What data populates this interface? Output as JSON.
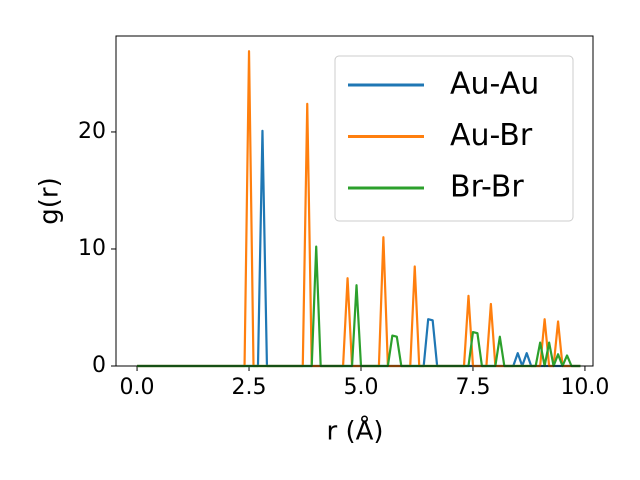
{
  "chart_data": {
    "type": "line",
    "xlabel": "r (Å)",
    "ylabel": "g(r)",
    "x": [
      0,
      0.1,
      0.2,
      0.3,
      0.4,
      0.5,
      0.6,
      0.7,
      0.8,
      0.9,
      1,
      1.1,
      1.2,
      1.3,
      1.4,
      1.5,
      1.6,
      1.7,
      1.8,
      1.9,
      2,
      2.1,
      2.2,
      2.3,
      2.4,
      2.5,
      2.6,
      2.7,
      2.8,
      2.9,
      3,
      3.1,
      3.2,
      3.3,
      3.4,
      3.5,
      3.6,
      3.7,
      3.8,
      3.9,
      4,
      4.1,
      4.2,
      4.3,
      4.4,
      4.5,
      4.6,
      4.7,
      4.8,
      4.9,
      5,
      5.1,
      5.2,
      5.3,
      5.4,
      5.5,
      5.6,
      5.7,
      5.8,
      5.9,
      6,
      6.1,
      6.2,
      6.3,
      6.4,
      6.5,
      6.6,
      6.7,
      6.8,
      6.9,
      7,
      7.1,
      7.2,
      7.3,
      7.4,
      7.5,
      7.6,
      7.7,
      7.8,
      7.9,
      8,
      8.1,
      8.2,
      8.3,
      8.4,
      8.5,
      8.6,
      8.7,
      8.8,
      8.9,
      9,
      9.1,
      9.2,
      9.3,
      9.4,
      9.5,
      9.6,
      9.7,
      9.8,
      9.9
    ],
    "series": [
      {
        "name": "Au-Au",
        "color": "#1f77b4",
        "values": [
          0,
          0,
          0,
          0,
          0,
          0,
          0,
          0,
          0,
          0,
          0,
          0,
          0,
          0,
          0,
          0,
          0,
          0,
          0,
          0,
          0,
          0,
          0,
          0,
          0,
          0,
          0,
          0,
          20.1,
          0,
          0,
          0,
          0,
          0,
          0,
          0,
          0,
          0,
          0,
          0,
          0,
          0,
          0,
          0,
          0,
          0,
          0,
          0,
          0,
          0,
          0,
          0,
          0,
          0,
          0,
          0,
          0,
          0,
          0,
          0,
          0,
          0,
          0,
          0,
          0,
          4.0,
          3.9,
          0,
          0,
          0,
          0,
          0,
          0,
          0,
          0,
          0,
          0,
          0,
          0,
          0,
          0,
          0,
          0,
          0,
          0,
          1.1,
          0,
          1.1,
          0,
          0,
          0,
          0,
          0,
          0,
          0,
          0,
          0,
          0,
          0,
          0
        ]
      },
      {
        "name": "Au-Br",
        "color": "#ff7f0e",
        "values": [
          0,
          0,
          0,
          0,
          0,
          0,
          0,
          0,
          0,
          0,
          0,
          0,
          0,
          0,
          0,
          0,
          0,
          0,
          0,
          0,
          0,
          0,
          0,
          0,
          0,
          26.9,
          0,
          0,
          0,
          0,
          0,
          0,
          0,
          0,
          0,
          0,
          0,
          0,
          22.4,
          0,
          0,
          0,
          0,
          0,
          0,
          0,
          0,
          7.5,
          0,
          0,
          0,
          0,
          0,
          0,
          0,
          11.0,
          0,
          0,
          0,
          0,
          0,
          0,
          8.5,
          0,
          0,
          0,
          0,
          0,
          0,
          0,
          0,
          0,
          0,
          0,
          6.0,
          0,
          0,
          0,
          0,
          5.3,
          0,
          0,
          0,
          0,
          0,
          0,
          0,
          0,
          0,
          0,
          0,
          4.0,
          0,
          0,
          3.8,
          0,
          0,
          0,
          0,
          0
        ]
      },
      {
        "name": "Br-Br",
        "color": "#2ca02c",
        "values": [
          0,
          0,
          0,
          0,
          0,
          0,
          0,
          0,
          0,
          0,
          0,
          0,
          0,
          0,
          0,
          0,
          0,
          0,
          0,
          0,
          0,
          0,
          0,
          0,
          0,
          0,
          0,
          0,
          0,
          0,
          0,
          0,
          0,
          0,
          0,
          0,
          0,
          0,
          0,
          0,
          10.2,
          0,
          0,
          0,
          0,
          0,
          0,
          0,
          0,
          6.9,
          0,
          0,
          0,
          0,
          0,
          0,
          0,
          2.6,
          2.5,
          0,
          0,
          0,
          0,
          0,
          0,
          0,
          0,
          0,
          0,
          0,
          0,
          0,
          0,
          0,
          0,
          2.9,
          2.8,
          0,
          0,
          0,
          0,
          2.5,
          0,
          0,
          0,
          0,
          0,
          0,
          0,
          0,
          2.0,
          0,
          2.0,
          0,
          1.0,
          0,
          0.9,
          0,
          0,
          0
        ]
      }
    ],
    "xlim": [
      -0.47,
      10.18
    ],
    "ylim": [
      0,
      28.2
    ],
    "xticks": [
      {
        "value": 0,
        "label": "0.0"
      },
      {
        "value": 2.5,
        "label": "2.5"
      },
      {
        "value": 5,
        "label": "5.0"
      },
      {
        "value": 7.5,
        "label": "7.5"
      },
      {
        "value": 10,
        "label": "10.0"
      }
    ],
    "yticks": [
      0,
      10,
      20
    ],
    "legend": "upper right",
    "grid": false
  }
}
